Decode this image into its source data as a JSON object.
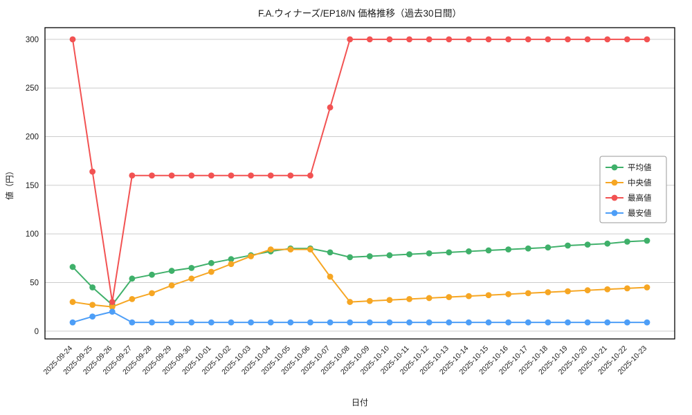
{
  "chart_data": {
    "type": "line",
    "title": "F.A.ウィナーズ/EP18/N 価格推移（過去30日間）",
    "xlabel": "日付",
    "ylabel": "値（円）",
    "ylim": [
      -8,
      312
    ],
    "yticks": [
      0,
      50,
      100,
      150,
      200,
      250,
      300
    ],
    "grid": true,
    "legend_position": "center-right",
    "marker": "circle",
    "categories": [
      "2025-09-24",
      "2025-09-25",
      "2025-09-26",
      "2025-09-27",
      "2025-09-28",
      "2025-09-29",
      "2025-09-30",
      "2025-10-01",
      "2025-10-02",
      "2025-10-03",
      "2025-10-04",
      "2025-10-05",
      "2025-10-06",
      "2025-10-07",
      "2025-10-08",
      "2025-10-09",
      "2025-10-10",
      "2025-10-11",
      "2025-10-12",
      "2025-10-13",
      "2025-10-14",
      "2025-10-15",
      "2025-10-16",
      "2025-10-17",
      "2025-10-18",
      "2025-10-19",
      "2025-10-20",
      "2025-10-21",
      "2025-10-22",
      "2025-10-23"
    ],
    "series": [
      {
        "name": "平均値",
        "color": "#3fb06a",
        "values": [
          66,
          45,
          27,
          54,
          58,
          62,
          65,
          70,
          74,
          78,
          82,
          85,
          85,
          81,
          76,
          77,
          78,
          79,
          80,
          81,
          82,
          83,
          84,
          85,
          86,
          88,
          89,
          90,
          92,
          93
        ]
      },
      {
        "name": "中央値",
        "color": "#f6a623",
        "values": [
          30,
          27,
          25,
          33,
          39,
          47,
          54,
          61,
          69,
          77,
          84,
          84,
          84,
          56,
          30,
          31,
          32,
          33,
          34,
          35,
          36,
          37,
          38,
          39,
          40,
          41,
          42,
          43,
          44,
          45
        ]
      },
      {
        "name": "最高値",
        "color": "#f25252",
        "values": [
          300,
          164,
          30,
          160,
          160,
          160,
          160,
          160,
          160,
          160,
          160,
          160,
          160,
          230,
          300,
          300,
          300,
          300,
          300,
          300,
          300,
          300,
          300,
          300,
          300,
          300,
          300,
          300,
          300,
          300
        ]
      },
      {
        "name": "最安値",
        "color": "#4d9ef7",
        "values": [
          9,
          15,
          20,
          9,
          9,
          9,
          9,
          9,
          9,
          9,
          9,
          9,
          9,
          9,
          9,
          9,
          9,
          9,
          9,
          9,
          9,
          9,
          9,
          9,
          9,
          9,
          9,
          9,
          9,
          9
        ]
      }
    ],
    "style": {
      "grid_color": "#cccccc",
      "axis_color": "#000000",
      "background": "#ffffff",
      "legend_border": "#999999"
    }
  }
}
